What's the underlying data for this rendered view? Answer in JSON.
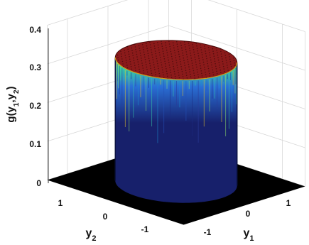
{
  "chart_data": {
    "type": "surface3d",
    "title": "",
    "description_of_function": "cylindrical plateau: constant height inside unit disk, zero outside",
    "xlabel": "y",
    "xlabel_sub": "1",
    "ylabel": "y",
    "ylabel_sub": "2",
    "zlabel": "g(y",
    "zlabel_sub1": "1",
    "zlabel_mid": ",y",
    "zlabel_sub2": "2",
    "zlabel_end": ")",
    "x_ticks": [
      "-1",
      "0",
      "1"
    ],
    "y_ticks": [
      "-1",
      "0",
      "1"
    ],
    "z_ticks": [
      "0",
      "0.1",
      "0.2",
      "0.3",
      "0.4"
    ],
    "xlim": [
      -1.5,
      1.5
    ],
    "ylim": [
      -1.5,
      1.5
    ],
    "zlim": [
      0,
      0.4
    ],
    "plateau_height": 0.3183,
    "support_radius": 1.0,
    "grid": true,
    "colormap": "jet",
    "colors": {
      "floor": "#000000",
      "top": "#8b1a1a",
      "wall_base": "#17206b",
      "wall_mid": "#2a6fd6",
      "wall_high": "#3cd6a0",
      "rim": "#f0c020"
    }
  }
}
